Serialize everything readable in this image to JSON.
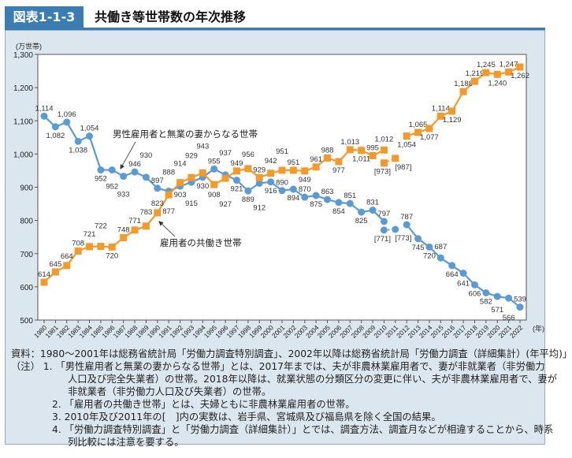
{
  "header": {
    "figure_number": "図表1-1-3",
    "title": "共働き等世帯数の年次推移"
  },
  "chart_data": {
    "type": "line",
    "title": "共働き等世帯数の年次推移",
    "ylabel": "(万世帯)",
    "xlabel": "(年)",
    "ylim": [
      500,
      1300
    ],
    "yticks": [
      500,
      600,
      700,
      800,
      900,
      "1,000",
      "1,100",
      "1,200",
      "1,300"
    ],
    "grid": false,
    "x": [
      1980,
      1981,
      1982,
      1983,
      1984,
      1985,
      1986,
      1987,
      1988,
      1989,
      1990,
      1991,
      1992,
      1993,
      1994,
      1995,
      1996,
      1997,
      1998,
      1999,
      2000,
      2001,
      2002,
      2003,
      2004,
      2005,
      2006,
      2007,
      2008,
      2009,
      2010,
      2011,
      2012,
      2013,
      2014,
      2015,
      2016,
      2017,
      2018,
      2019,
      2020,
      2021,
      2022
    ],
    "series": [
      {
        "name": "男性雇用者と無業の妻からなる世帯",
        "color": "#5b9bd5",
        "marker": "circle",
        "values": [
          1114,
          1082,
          1096,
          1038,
          1054,
          952,
          952,
          933,
          946,
          930,
          897,
          888,
          903,
          915,
          930,
          955,
          937,
          921,
          889,
          912,
          916,
          890,
          894,
          870,
          875,
          863,
          854,
          851,
          825,
          831,
          797,
          null,
          787,
          745,
          720,
          687,
          664,
          641,
          606,
          582,
          571,
          566,
          539
        ],
        "bracketed": {
          "note": "岩手県、宮城県及び福島県を除く",
          "x": [
            2010,
            2011
          ],
          "values": [
            771,
            773
          ]
        }
      },
      {
        "name": "雇用者の共働き世帯",
        "color": "#f39a2b",
        "marker": "square",
        "values": [
          614,
          645,
          664,
          708,
          721,
          722,
          720,
          748,
          771,
          783,
          823,
          877,
          914,
          929,
          943,
          908,
          927,
          949,
          956,
          929,
          942,
          951,
          951,
          949,
          961,
          988,
          977,
          1013,
          1011,
          995,
          1012,
          null,
          1054,
          1065,
          1077,
          1114,
          1129,
          1188,
          1219,
          1245,
          1240,
          1247,
          1262
        ],
        "bracketed": {
          "note": "岩手県、宮城県及び福島県を除く",
          "x": [
            2010,
            2011
          ],
          "values": [
            973,
            987
          ]
        }
      }
    ]
  },
  "notes": [
    "資料：1980～2001年は総務省統計局「労働力調査特別調査」、2002年以降は総務省統計局「労働力調査（詳細集計）(年平均)」",
    "（注） 1. 「男性雇用者と無業の妻からなる世帯」とは、2017年までは、夫が非農林業雇用者で、妻が非就業者（非労働力",
    "人口及び完全失業者）の世帯。2018年以降は、就業状態の分類区分の変更に伴い、夫が非農林業雇用者で、妻が",
    "非就業者（非労働力人口及び失業者）の世帯。",
    "2. 「雇用者の共働き世帯」とは、夫婦ともに非農林業雇用者の世帯。",
    "3. 2010年及び2011年の[　]内の実数は、岩手県、宮城県及び福島県を除く全国の結果。",
    "4. 「労働力調査特別調査」と「労働力調査（詳細集計）」とでは、調査方法、調査月などが相違することから、時系",
    "列比較には注意を要する。"
  ]
}
